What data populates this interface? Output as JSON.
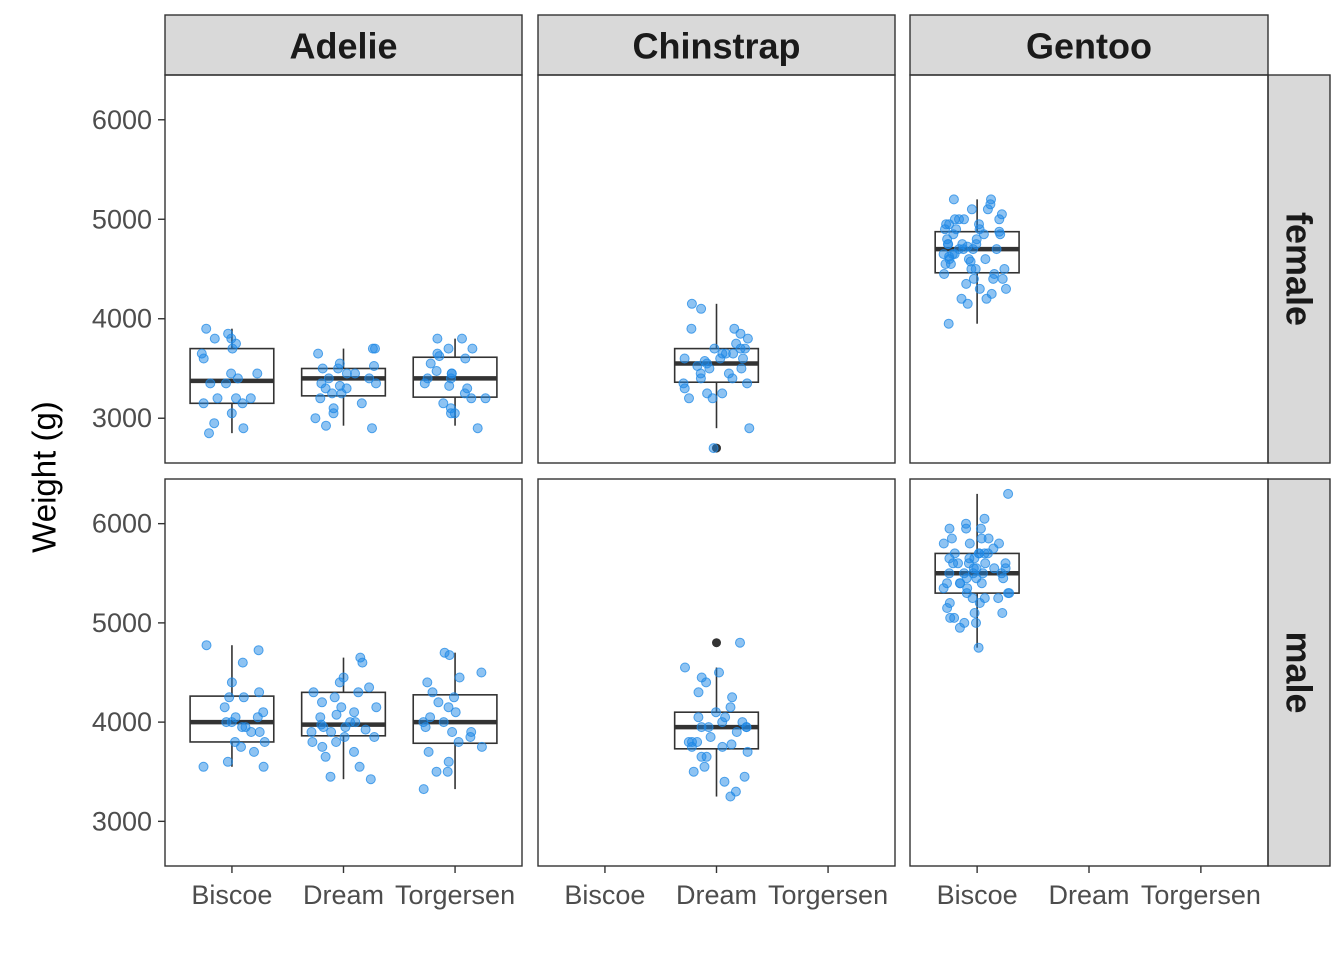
{
  "chart_data": {
    "type": "boxplot",
    "layout": "facet_grid",
    "title": "",
    "xlabel": "",
    "ylabel": "Weight (g)",
    "ylim": [
      2550,
      6450
    ],
    "yticks": [
      3000,
      4000,
      5000,
      6000
    ],
    "ytick_labels": [
      "3000",
      "4000",
      "5000",
      "6000"
    ],
    "grid": "horizontal major",
    "columns": [
      "Adelie",
      "Chinstrap",
      "Gentoo"
    ],
    "rows": [
      "female",
      "male"
    ],
    "islands": [
      "Biscoe",
      "Dream",
      "Torgersen"
    ],
    "point_color": "#1E88E5",
    "box_color": "#333333",
    "strip_fill": "#d9d9d9",
    "boxes": [
      {
        "species": "Adelie",
        "sex": "female",
        "island": "Biscoe",
        "q1": 3150,
        "median": 3375,
        "q3": 3700,
        "whisker_low": 2850,
        "whisker_high": 3900
      },
      {
        "species": "Adelie",
        "sex": "female",
        "island": "Dream",
        "q1": 3225,
        "median": 3400,
        "q3": 3500,
        "whisker_low": 2925,
        "whisker_high": 3700
      },
      {
        "species": "Adelie",
        "sex": "female",
        "island": "Torgersen",
        "q1": 3212,
        "median": 3400,
        "q3": 3613,
        "whisker_low": 2925,
        "whisker_high": 3800
      },
      {
        "species": "Chinstrap",
        "sex": "female",
        "island": "Dream",
        "q1": 3362,
        "median": 3550,
        "q3": 3700,
        "whisker_low": 2900,
        "whisker_high": 4150,
        "outliers": [
          2700
        ]
      },
      {
        "species": "Gentoo",
        "sex": "female",
        "island": "Biscoe",
        "q1": 4462,
        "median": 4700,
        "q3": 4875,
        "whisker_low": 3950,
        "whisker_high": 5200
      },
      {
        "species": "Adelie",
        "sex": "male",
        "island": "Biscoe",
        "q1": 3800,
        "median": 4000,
        "q3": 4262,
        "whisker_low": 3550,
        "whisker_high": 4775
      },
      {
        "species": "Adelie",
        "sex": "male",
        "island": "Dream",
        "q1": 3862,
        "median": 3975,
        "q3": 4300,
        "whisker_low": 3425,
        "whisker_high": 4650
      },
      {
        "species": "Adelie",
        "sex": "male",
        "island": "Torgersen",
        "q1": 3787,
        "median": 4000,
        "q3": 4275,
        "whisker_low": 3325,
        "whisker_high": 4700
      },
      {
        "species": "Chinstrap",
        "sex": "male",
        "island": "Dream",
        "q1": 3731,
        "median": 3950,
        "q3": 4100,
        "whisker_low": 3250,
        "whisker_high": 4550,
        "outliers": [
          4800
        ]
      },
      {
        "species": "Gentoo",
        "sex": "male",
        "island": "Biscoe",
        "q1": 5300,
        "median": 5500,
        "q3": 5700,
        "whisker_low": 4750,
        "whisker_high": 6300
      }
    ],
    "points": [
      {
        "species": "Adelie",
        "sex": "female",
        "island": "Biscoe",
        "y": [
          3800,
          3750,
          3900,
          3800,
          3850,
          3700,
          3600,
          3450,
          3400,
          3350,
          3200,
          3200,
          3150,
          3150,
          3050,
          2950,
          2900,
          2850,
          3200,
          3450,
          3350,
          3650
        ]
      },
      {
        "species": "Adelie",
        "sex": "female",
        "island": "Dream",
        "y": [
          3700,
          3700,
          3650,
          3550,
          3525,
          3500,
          3500,
          3450,
          3450,
          3400,
          3350,
          3350,
          3325,
          3300,
          3300,
          3250,
          3200,
          3150,
          3100,
          3050,
          3000,
          2900,
          2925,
          3400,
          3250
        ]
      },
      {
        "species": "Adelie",
        "sex": "female",
        "island": "Torgersen",
        "y": [
          3800,
          3800,
          3700,
          3700,
          3600,
          3550,
          3475,
          3450,
          3400,
          3350,
          3325,
          3300,
          3250,
          3200,
          3150,
          3100,
          3050,
          3050,
          2900,
          3450,
          3400,
          3625,
          3650,
          3200
        ]
      },
      {
        "species": "Chinstrap",
        "sex": "female",
        "island": "Dream",
        "y": [
          4150,
          4100,
          3900,
          3850,
          3800,
          3700,
          3700,
          3650,
          3650,
          3600,
          3600,
          3575,
          3550,
          3525,
          3500,
          3450,
          3400,
          3400,
          3350,
          3350,
          3250,
          3250,
          3200,
          3200,
          2900,
          2700,
          3500,
          3650,
          3700,
          3900,
          3750,
          3600,
          3450,
          3300
        ]
      },
      {
        "species": "Gentoo",
        "sex": "female",
        "island": "Biscoe",
        "y": [
          5200,
          5200,
          5150,
          5100,
          5050,
          5000,
          5000,
          5000,
          4950,
          4950,
          4900,
          4900,
          4875,
          4850,
          4850,
          4800,
          4800,
          4750,
          4750,
          4750,
          4725,
          4700,
          4700,
          4700,
          4650,
          4650,
          4650,
          4600,
          4600,
          4575,
          4550,
          4500,
          4500,
          4450,
          4450,
          4400,
          4400,
          4350,
          4300,
          4250,
          4200,
          4200,
          4150,
          3950,
          4400,
          4625,
          4750,
          4900,
          5000,
          4550,
          4850,
          4700,
          4600,
          4300,
          4500,
          4950,
          5100
        ]
      },
      {
        "species": "Adelie",
        "sex": "male",
        "island": "Biscoe",
        "y": [
          4775,
          4725,
          4600,
          4400,
          4300,
          4250,
          4250,
          4100,
          4050,
          4000,
          4000,
          3950,
          3900,
          3900,
          3800,
          3800,
          3750,
          3700,
          3600,
          3550,
          3550,
          4050,
          3950,
          4150
        ]
      },
      {
        "species": "Adelie",
        "sex": "male",
        "island": "Dream",
        "y": [
          4650,
          4600,
          4450,
          4400,
          4350,
          4300,
          4300,
          4250,
          4150,
          4150,
          4100,
          4050,
          4000,
          3975,
          3950,
          3950,
          3900,
          3900,
          3850,
          3850,
          3800,
          3800,
          3750,
          3700,
          3650,
          3550,
          3450,
          3425,
          4000,
          4075,
          3925,
          4200
        ]
      },
      {
        "species": "Adelie",
        "sex": "male",
        "island": "Torgersen",
        "y": [
          4700,
          4675,
          4500,
          4450,
          4400,
          4300,
          4250,
          4200,
          4150,
          4100,
          4000,
          4000,
          3950,
          3900,
          3900,
          3800,
          3750,
          3700,
          3600,
          3500,
          3500,
          3325,
          4050,
          3850
        ]
      },
      {
        "species": "Chinstrap",
        "sex": "male",
        "island": "Dream",
        "y": [
          4800,
          4550,
          4500,
          4450,
          4400,
          4300,
          4250,
          4100,
          4050,
          4050,
          4000,
          3950,
          3950,
          3950,
          3900,
          3850,
          3800,
          3800,
          3800,
          3775,
          3750,
          3700,
          3650,
          3650,
          3550,
          3500,
          3450,
          3400,
          3300,
          3250,
          3950,
          4000,
          3750,
          4150
        ]
      },
      {
        "species": "Gentoo",
        "sex": "male",
        "island": "Biscoe",
        "y": [
          6300,
          6050,
          6000,
          5950,
          5950,
          5850,
          5850,
          5800,
          5800,
          5750,
          5700,
          5700,
          5700,
          5650,
          5650,
          5600,
          5600,
          5600,
          5550,
          5550,
          5550,
          5500,
          5500,
          5500,
          5450,
          5450,
          5400,
          5400,
          5400,
          5350,
          5300,
          5300,
          5250,
          5250,
          5200,
          5150,
          5100,
          5050,
          5000,
          5000,
          4950,
          4750,
          5400,
          5600,
          5500,
          5700,
          5550,
          5200,
          5350,
          5450,
          5650,
          5800,
          5600,
          5050,
          5950,
          5500,
          5250,
          5850,
          5300,
          5100,
          5700
        ]
      }
    ]
  }
}
